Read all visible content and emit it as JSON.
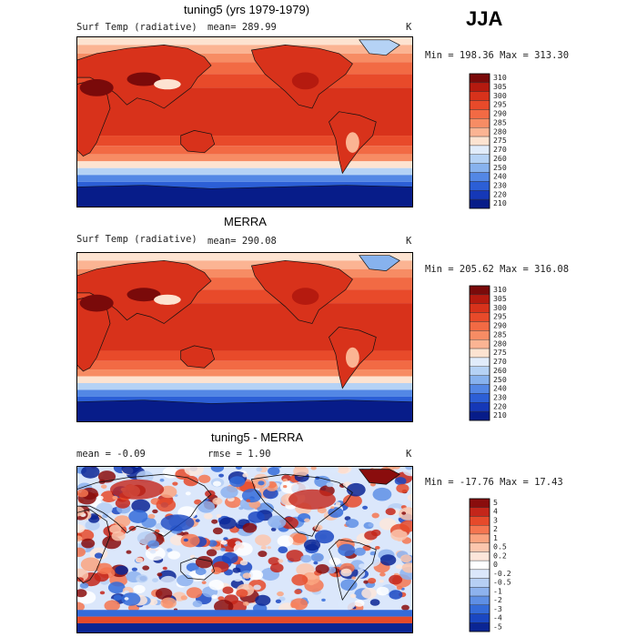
{
  "season_label": "JJA",
  "panels": [
    {
      "title": "tuning5 (yrs 1979-1979)",
      "left_label": "Surf Temp (radiative)",
      "stat1": "mean= 289.99",
      "stat2": "",
      "unit": "K",
      "minmax": "Min = 198.36 Max = 313.30",
      "levels": [
        "310",
        "305",
        "300",
        "295",
        "290",
        "285",
        "280",
        "275",
        "270",
        "260",
        "250",
        "240",
        "230",
        "220",
        "210"
      ]
    },
    {
      "title": "MERRA",
      "left_label": "Surf Temp (radiative)",
      "stat1": "mean= 290.08",
      "stat2": "",
      "unit": "K",
      "minmax": "Min = 205.62 Max = 316.08",
      "levels": [
        "310",
        "305",
        "300",
        "295",
        "290",
        "285",
        "280",
        "275",
        "270",
        "260",
        "250",
        "240",
        "230",
        "220",
        "210"
      ]
    },
    {
      "title": "tuning5 - MERRA",
      "left_label": "mean =   -0.09",
      "stat1": "",
      "stat2": "rmse =    1.90",
      "unit": "K",
      "minmax": "Min = -17.76 Max =  17.43",
      "levels": [
        "5",
        "4",
        "3",
        "2",
        "1",
        "0.5",
        "0.2",
        "0",
        "-0.2",
        "-0.5",
        "-1",
        "-2",
        "-3",
        "-4",
        "-5"
      ]
    }
  ],
  "colors": {
    "warm_scale": [
      "#7a0a0a",
      "#b51a0f",
      "#d8321b",
      "#e84a2a",
      "#f26a44",
      "#f78c64",
      "#fbb493",
      "#fde3d1",
      "#e1ecfb",
      "#b5d2f5",
      "#87b2ee",
      "#5387e5",
      "#2c5fd6",
      "#1538b7",
      "#071c89"
    ],
    "diff_scale": [
      "#8a0d0d",
      "#c4261a",
      "#e64a2a",
      "#f57650",
      "#faa37f",
      "#fcc6ad",
      "#fde6da",
      "#ffffff",
      "#dbe7fb",
      "#b6cff4",
      "#8db2ee",
      "#5e8fe5",
      "#346bd9",
      "#1a47c2",
      "#0a2594"
    ]
  }
}
